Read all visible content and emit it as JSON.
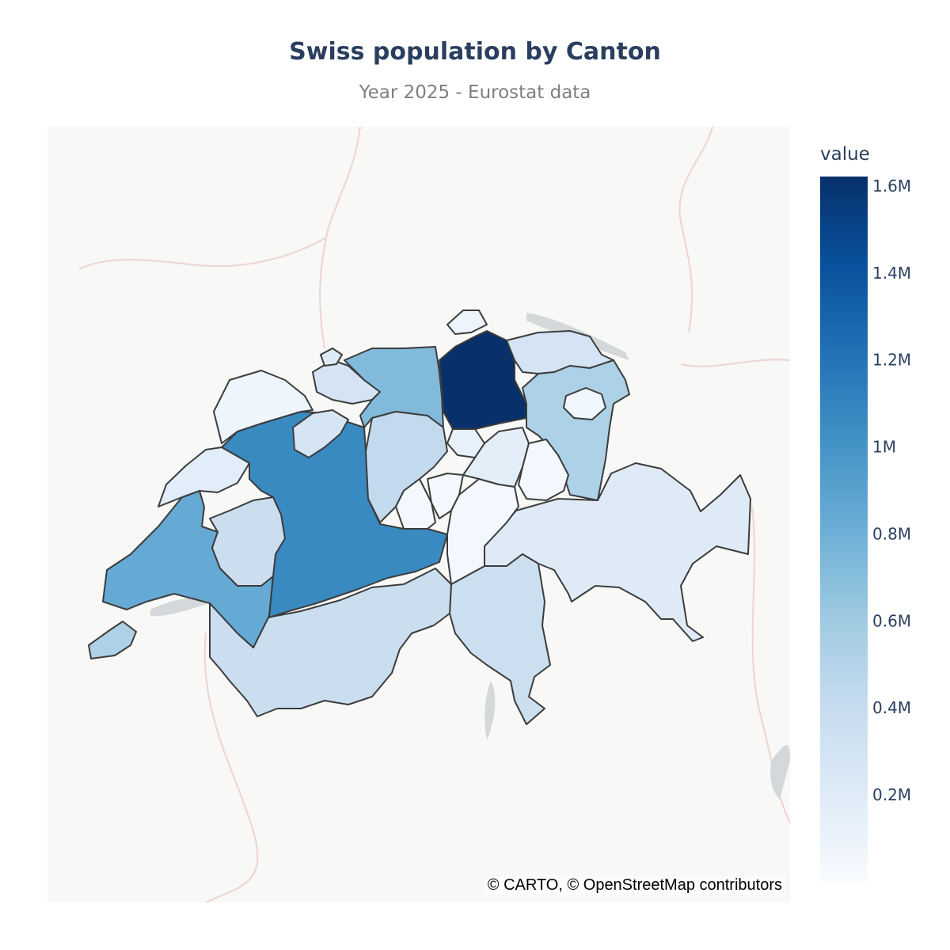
{
  "title": "Swiss population by Canton",
  "subtitle": "Year 2025 - Eurostat data",
  "attribution": "© CARTO, © OpenStreetMap contributors",
  "colors": {
    "title": "#2a3f5f",
    "subtitle": "#7f7f7f",
    "map_background": "#f8f8f6",
    "canton_border": "#3c3c3c",
    "colorscale": [
      "#f7fbff",
      "#deebf7",
      "#c6dbef",
      "#9ecae1",
      "#6baed6",
      "#4292c6",
      "#2171b5",
      "#08519c",
      "#08306b"
    ]
  },
  "colorbar": {
    "title": "value",
    "min": 0,
    "max": 1620000,
    "ticks": [
      {
        "value": 200000,
        "label": "0.2M"
      },
      {
        "value": 400000,
        "label": "0.4M"
      },
      {
        "value": 600000,
        "label": "0.6M"
      },
      {
        "value": 800000,
        "label": "0.8M"
      },
      {
        "value": 1000000,
        "label": "1M"
      },
      {
        "value": 1200000,
        "label": "1.2M"
      },
      {
        "value": 1400000,
        "label": "1.4M"
      },
      {
        "value": 1600000,
        "label": "1.6M"
      }
    ]
  },
  "chart_data": {
    "type": "choropleth map",
    "scale": "Blues",
    "regions": [
      {
        "id": "zurich",
        "value": 1620000
      },
      {
        "id": "bern",
        "value": 1060000
      },
      {
        "id": "vaud",
        "value": 840000
      },
      {
        "id": "aargau",
        "value": 720000
      },
      {
        "id": "st-gallen",
        "value": 530000
      },
      {
        "id": "geneva",
        "value": 520000
      },
      {
        "id": "fribourg-valais",
        "value": 370000
      },
      {
        "id": "lucerne",
        "value": 420000
      },
      {
        "id": "ticino",
        "value": 360000
      },
      {
        "id": "graubunden",
        "value": 200000
      },
      {
        "id": "thurgau",
        "value": 290000
      },
      {
        "id": "solothurn",
        "value": 280000
      },
      {
        "id": "basel-landschaft",
        "value": 290000
      },
      {
        "id": "neuchatel",
        "value": 175000
      },
      {
        "id": "jura",
        "value": 74000
      },
      {
        "id": "schwyz",
        "value": 165000
      },
      {
        "id": "zug",
        "value": 130000
      },
      {
        "id": "schaffhausen",
        "value": 85000
      },
      {
        "id": "glarus",
        "value": 41000
      },
      {
        "id": "uri",
        "value": 37000
      },
      {
        "id": "obwalden",
        "value": 38000
      },
      {
        "id": "nidwalden",
        "value": 44000
      },
      {
        "id": "appenzell",
        "value": 56000
      },
      {
        "id": "basel-stadt",
        "value": 200000
      }
    ]
  }
}
